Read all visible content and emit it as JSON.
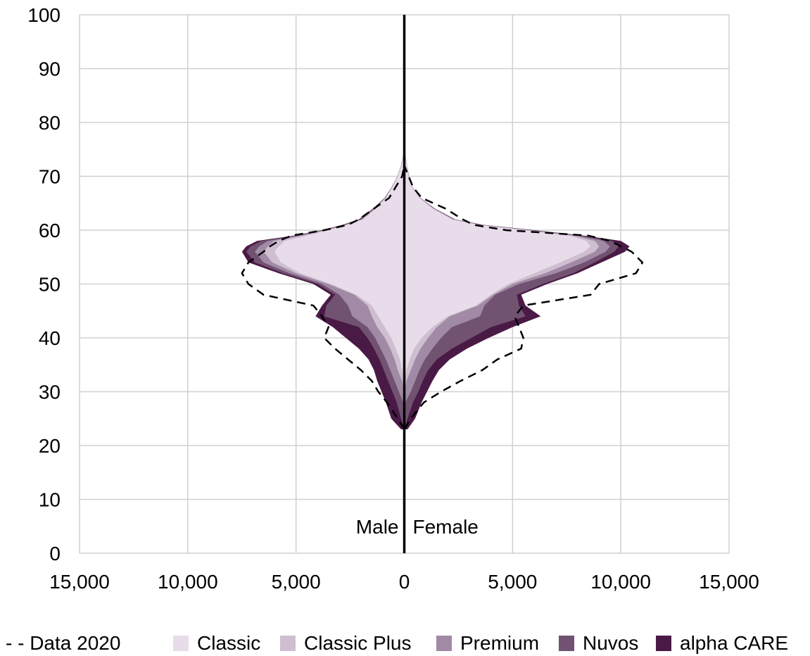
{
  "chart_data": {
    "type": "area",
    "subtype": "population-pyramid",
    "title": "",
    "xlabel": "",
    "ylabel": "",
    "xlim": [
      -15000,
      15000
    ],
    "ylim": [
      0,
      100
    ],
    "x_ticks": [
      "15,000",
      "10,000",
      "5,000",
      "0",
      "5,000",
      "10,000",
      "15,000"
    ],
    "y_ticks": [
      "0",
      "10",
      "20",
      "30",
      "40",
      "50",
      "60",
      "70",
      "80",
      "90",
      "100"
    ],
    "grid": true,
    "side_labels": {
      "left": "Male",
      "right": "Female"
    },
    "ages": [
      23,
      25,
      28,
      30,
      32,
      34,
      36,
      38,
      40,
      42,
      44,
      46,
      48,
      50,
      52,
      54,
      56,
      57,
      58,
      59,
      60,
      61,
      62,
      64,
      66,
      68,
      70,
      72,
      74,
      75
    ],
    "series": [
      {
        "name": "Classic",
        "color": "#e8dcea",
        "male": [
          0,
          0,
          0,
          0,
          0,
          100,
          200,
          400,
          600,
          900,
          1200,
          1500,
          2200,
          3400,
          4800,
          5700,
          6000,
          5800,
          5500,
          4500,
          3500,
          2600,
          1900,
          1300,
          850,
          550,
          300,
          130,
          30,
          0
        ],
        "female": [
          0,
          0,
          0,
          0,
          0,
          100,
          250,
          450,
          800,
          1300,
          2000,
          3300,
          4000,
          4800,
          6000,
          7200,
          8300,
          8600,
          8400,
          7600,
          5600,
          3400,
          2200,
          1300,
          700,
          350,
          200,
          120,
          40,
          0
        ]
      },
      {
        "name": "Classic Plus",
        "color": "#cfbecf",
        "male": [
          0,
          0,
          0,
          0,
          100,
          300,
          450,
          650,
          900,
          1250,
          1500,
          1700,
          2300,
          3500,
          5000,
          6100,
          6500,
          6300,
          6000,
          4700,
          3600,
          2700,
          1950,
          1350,
          870,
          560,
          310,
          140,
          35,
          0
        ],
        "female": [
          0,
          0,
          0,
          0,
          100,
          300,
          500,
          750,
          1100,
          1500,
          2100,
          3400,
          4100,
          5000,
          6500,
          7700,
          8800,
          9000,
          8800,
          7800,
          5700,
          3500,
          2250,
          1350,
          720,
          360,
          210,
          125,
          42,
          0
        ]
      },
      {
        "name": "Premium",
        "color": "#a08aa5",
        "male": [
          0,
          0,
          50,
          250,
          450,
          650,
          850,
          1100,
          1350,
          1700,
          2400,
          2600,
          3000,
          3800,
          5300,
          6500,
          6900,
          6700,
          6300,
          4900,
          3700,
          2750,
          2000,
          1400,
          890,
          570,
          315,
          145,
          38,
          0
        ],
        "female": [
          0,
          0,
          50,
          300,
          500,
          700,
          950,
          1300,
          1700,
          2200,
          3500,
          3700,
          4200,
          5300,
          7000,
          8300,
          9300,
          9500,
          9200,
          8000,
          5800,
          3550,
          2300,
          1400,
          740,
          370,
          215,
          128,
          44,
          0
        ]
      },
      {
        "name": "Nuvos",
        "color": "#725271",
        "male": [
          0,
          150,
          350,
          550,
          750,
          950,
          1150,
          1400,
          1700,
          2100,
          3700,
          3600,
          3200,
          4000,
          5600,
          6900,
          7300,
          7100,
          6600,
          5000,
          3750,
          2800,
          2050,
          1430,
          900,
          575,
          318,
          148,
          40,
          0
        ],
        "female": [
          0,
          150,
          400,
          650,
          850,
          1100,
          1500,
          2200,
          3100,
          4000,
          5600,
          5300,
          5200,
          6400,
          7800,
          8800,
          9700,
          9900,
          9600,
          8200,
          5900,
          3600,
          2320,
          1410,
          745,
          372,
          217,
          129,
          45,
          0
        ]
      },
      {
        "name": "alpha CARE",
        "color": "#4a1a46",
        "male": [
          150,
          600,
          850,
          1050,
          1250,
          1400,
          1650,
          2100,
          2700,
          3300,
          4100,
          3800,
          3400,
          4200,
          5800,
          7200,
          7500,
          7300,
          6800,
          5100,
          3800,
          2850,
          2100,
          1450,
          910,
          580,
          320,
          150,
          40,
          0
        ],
        "female": [
          150,
          500,
          800,
          1050,
          1300,
          1600,
          2100,
          2900,
          3900,
          5000,
          6300,
          5600,
          5400,
          6600,
          8000,
          9100,
          10200,
          10400,
          10000,
          8300,
          6000,
          3650,
          2350,
          1420,
          750,
          375,
          220,
          130,
          45,
          0
        ]
      }
    ],
    "reference": {
      "name": "Data 2020",
      "style": "dashed",
      "male": [
        0,
        300,
        800,
        1200,
        1500,
        2000,
        2600,
        3200,
        3700,
        3500,
        3800,
        4200,
        6500,
        7200,
        7500,
        7200,
        6500,
        6200,
        5800,
        5200,
        3700,
        2600,
        2100,
        1400,
        700,
        400,
        100,
        0,
        0,
        0
      ],
      "female": [
        0,
        300,
        900,
        1700,
        2600,
        3600,
        4300,
        5400,
        5500,
        5300,
        5100,
        5500,
        8600,
        9000,
        10700,
        11000,
        10500,
        10000,
        9500,
        8500,
        4700,
        3200,
        2700,
        1900,
        800,
        400,
        200,
        0,
        0,
        0
      ]
    }
  },
  "legend": [
    {
      "label": "- - Data 2020",
      "kind": "dashed"
    },
    {
      "label": "Classic",
      "kind": "swatch",
      "color": "#e8dcea"
    },
    {
      "label": "Classic Plus",
      "kind": "swatch",
      "color": "#cfbecf"
    },
    {
      "label": "Premium",
      "kind": "swatch",
      "color": "#a08aa5"
    },
    {
      "label": "Nuvos",
      "kind": "swatch",
      "color": "#725271"
    },
    {
      "label": "alpha CARE",
      "kind": "swatch",
      "color": "#4a1a46"
    }
  ]
}
